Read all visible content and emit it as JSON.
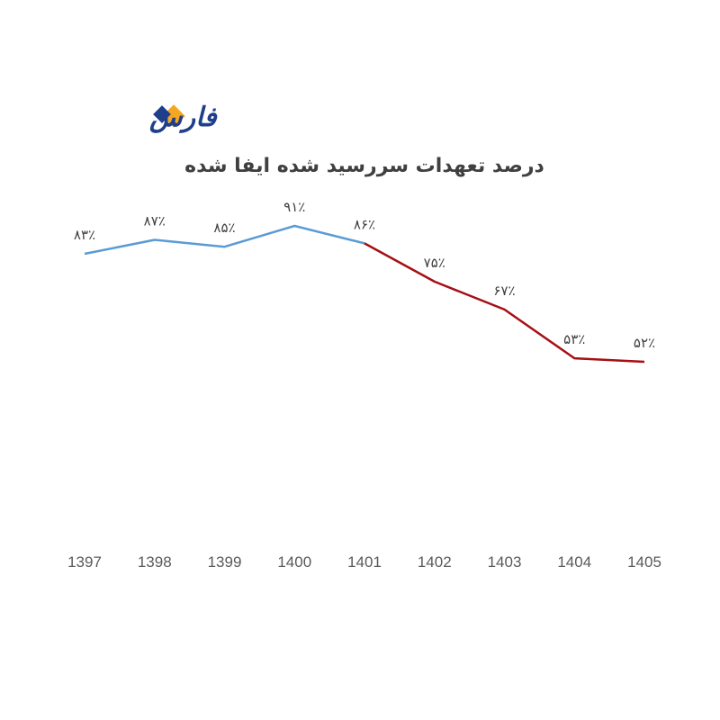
{
  "logo": {
    "text": "فارس",
    "diamond_colors": [
      "#f5a623",
      "#1f3f8c"
    ]
  },
  "chart_data": {
    "type": "line",
    "title": "درصد تعهدات سررسید شده ایفا شده",
    "categories": [
      "1397",
      "1398",
      "1399",
      "1400",
      "1401",
      "1402",
      "1403",
      "1404",
      "1405"
    ],
    "values": [
      83,
      87,
      85,
      91,
      86,
      75,
      67,
      53,
      52
    ],
    "data_labels": [
      "۸۳٪",
      "۸۷٪",
      "۸۵٪",
      "۹۱٪",
      "۸۶٪",
      "۷۵٪",
      "۶۷٪",
      "۵۳٪",
      "۵۲٪"
    ],
    "segments": [
      {
        "from": "1397",
        "to": "1401",
        "color": "#5b9bd5"
      },
      {
        "from": "1401",
        "to": "1405",
        "color": "#a50f15"
      }
    ],
    "grid": false,
    "legend": "none"
  }
}
